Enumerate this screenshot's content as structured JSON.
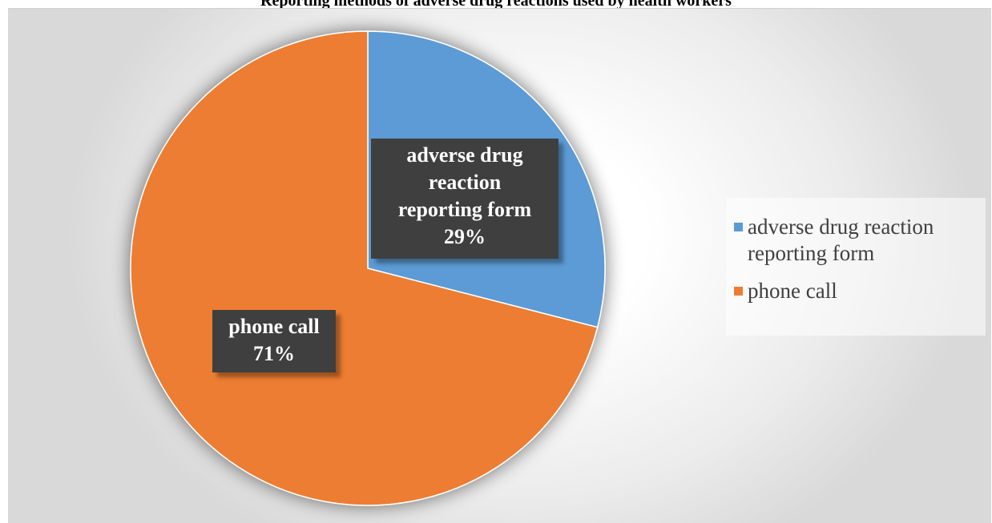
{
  "chart_data": {
    "type": "pie",
    "title": "Reporting methods of adverse drug reactions used by health workers",
    "series": [
      {
        "categories": [
          "adverse drug reaction reporting form",
          "phone call"
        ],
        "values": [
          29,
          71
        ]
      }
    ],
    "data_labels": [
      {
        "category": "adverse drug reaction",
        "category_line2": "reaction",
        "text_lines": [
          "adverse drug",
          "reaction",
          "reporting form"
        ],
        "percent": "29%"
      },
      {
        "text_lines": [
          "phone call"
        ],
        "percent": "71%"
      }
    ],
    "legend": {
      "position": "right",
      "entries": [
        {
          "line1": "adverse drug reaction",
          "line2": "reporting form",
          "color": "#5b9bd5"
        },
        {
          "line1": "phone call",
          "color": "#ed7d31"
        }
      ]
    },
    "colors": [
      "#5b9bd5",
      "#ed7d31"
    ]
  }
}
